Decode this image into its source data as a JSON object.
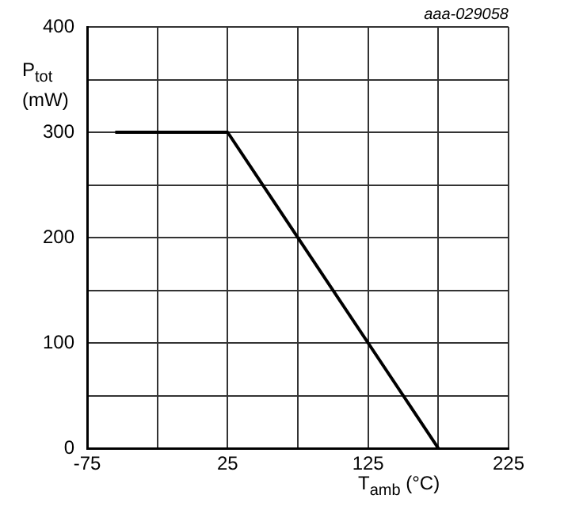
{
  "chart_data": {
    "type": "line",
    "xlabel": "T$_{amb}$ (°C)",
    "ylabel": "P$_{tot}$\n(mW)",
    "annotations": [
      "aaa-029058"
    ],
    "x": [
      -55,
      25,
      175
    ],
    "series": [
      {
        "color": "#000000",
        "values": [
          300,
          300,
          0
        ]
      }
    ],
    "xlim": [
      -75,
      225
    ],
    "xticks": [
      -75,
      {
        "value": -25,
        "label": null
      },
      25,
      {
        "value": 75,
        "label": null
      },
      125,
      {
        "value": 175,
        "label": null
      },
      225
    ],
    "ylim": [
      0,
      400
    ],
    "yticks": [
      0,
      {
        "value": 50,
        "label": null
      },
      100,
      {
        "value": 150,
        "label": null
      },
      200,
      {
        "value": 250,
        "label": null
      },
      300,
      {
        "value": 350,
        "label": null
      },
      400
    ],
    "grid": true,
    "marker": "none",
    "line_style": "solid"
  }
}
